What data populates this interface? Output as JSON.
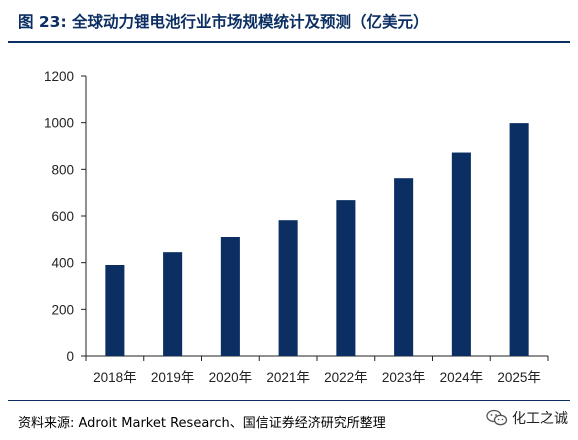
{
  "title": "图 23: 全球动力锂电池行业市场规模统计及预测（亿美元）",
  "source": "资料来源: Adroit Market Research、国信证券经济研究所整理",
  "watermark": "化工之诚",
  "colors": {
    "bar": "#0c2f63",
    "title": "#0c2f63",
    "axis": "#222222"
  },
  "chart_data": {
    "type": "bar",
    "title": "全球动力锂电池行业市场规模统计及预测（亿美元）",
    "xlabel": "",
    "ylabel": "",
    "categories": [
      "2018年",
      "2019年",
      "2020年",
      "2021年",
      "2022年",
      "2023年",
      "2024年",
      "2025年"
    ],
    "values": [
      390,
      445,
      510,
      582,
      668,
      762,
      872,
      998
    ],
    "ylim": [
      0,
      1200
    ],
    "yticks": [
      0,
      200,
      400,
      600,
      800,
      1000,
      1200
    ],
    "grid": false,
    "legend": "none"
  }
}
